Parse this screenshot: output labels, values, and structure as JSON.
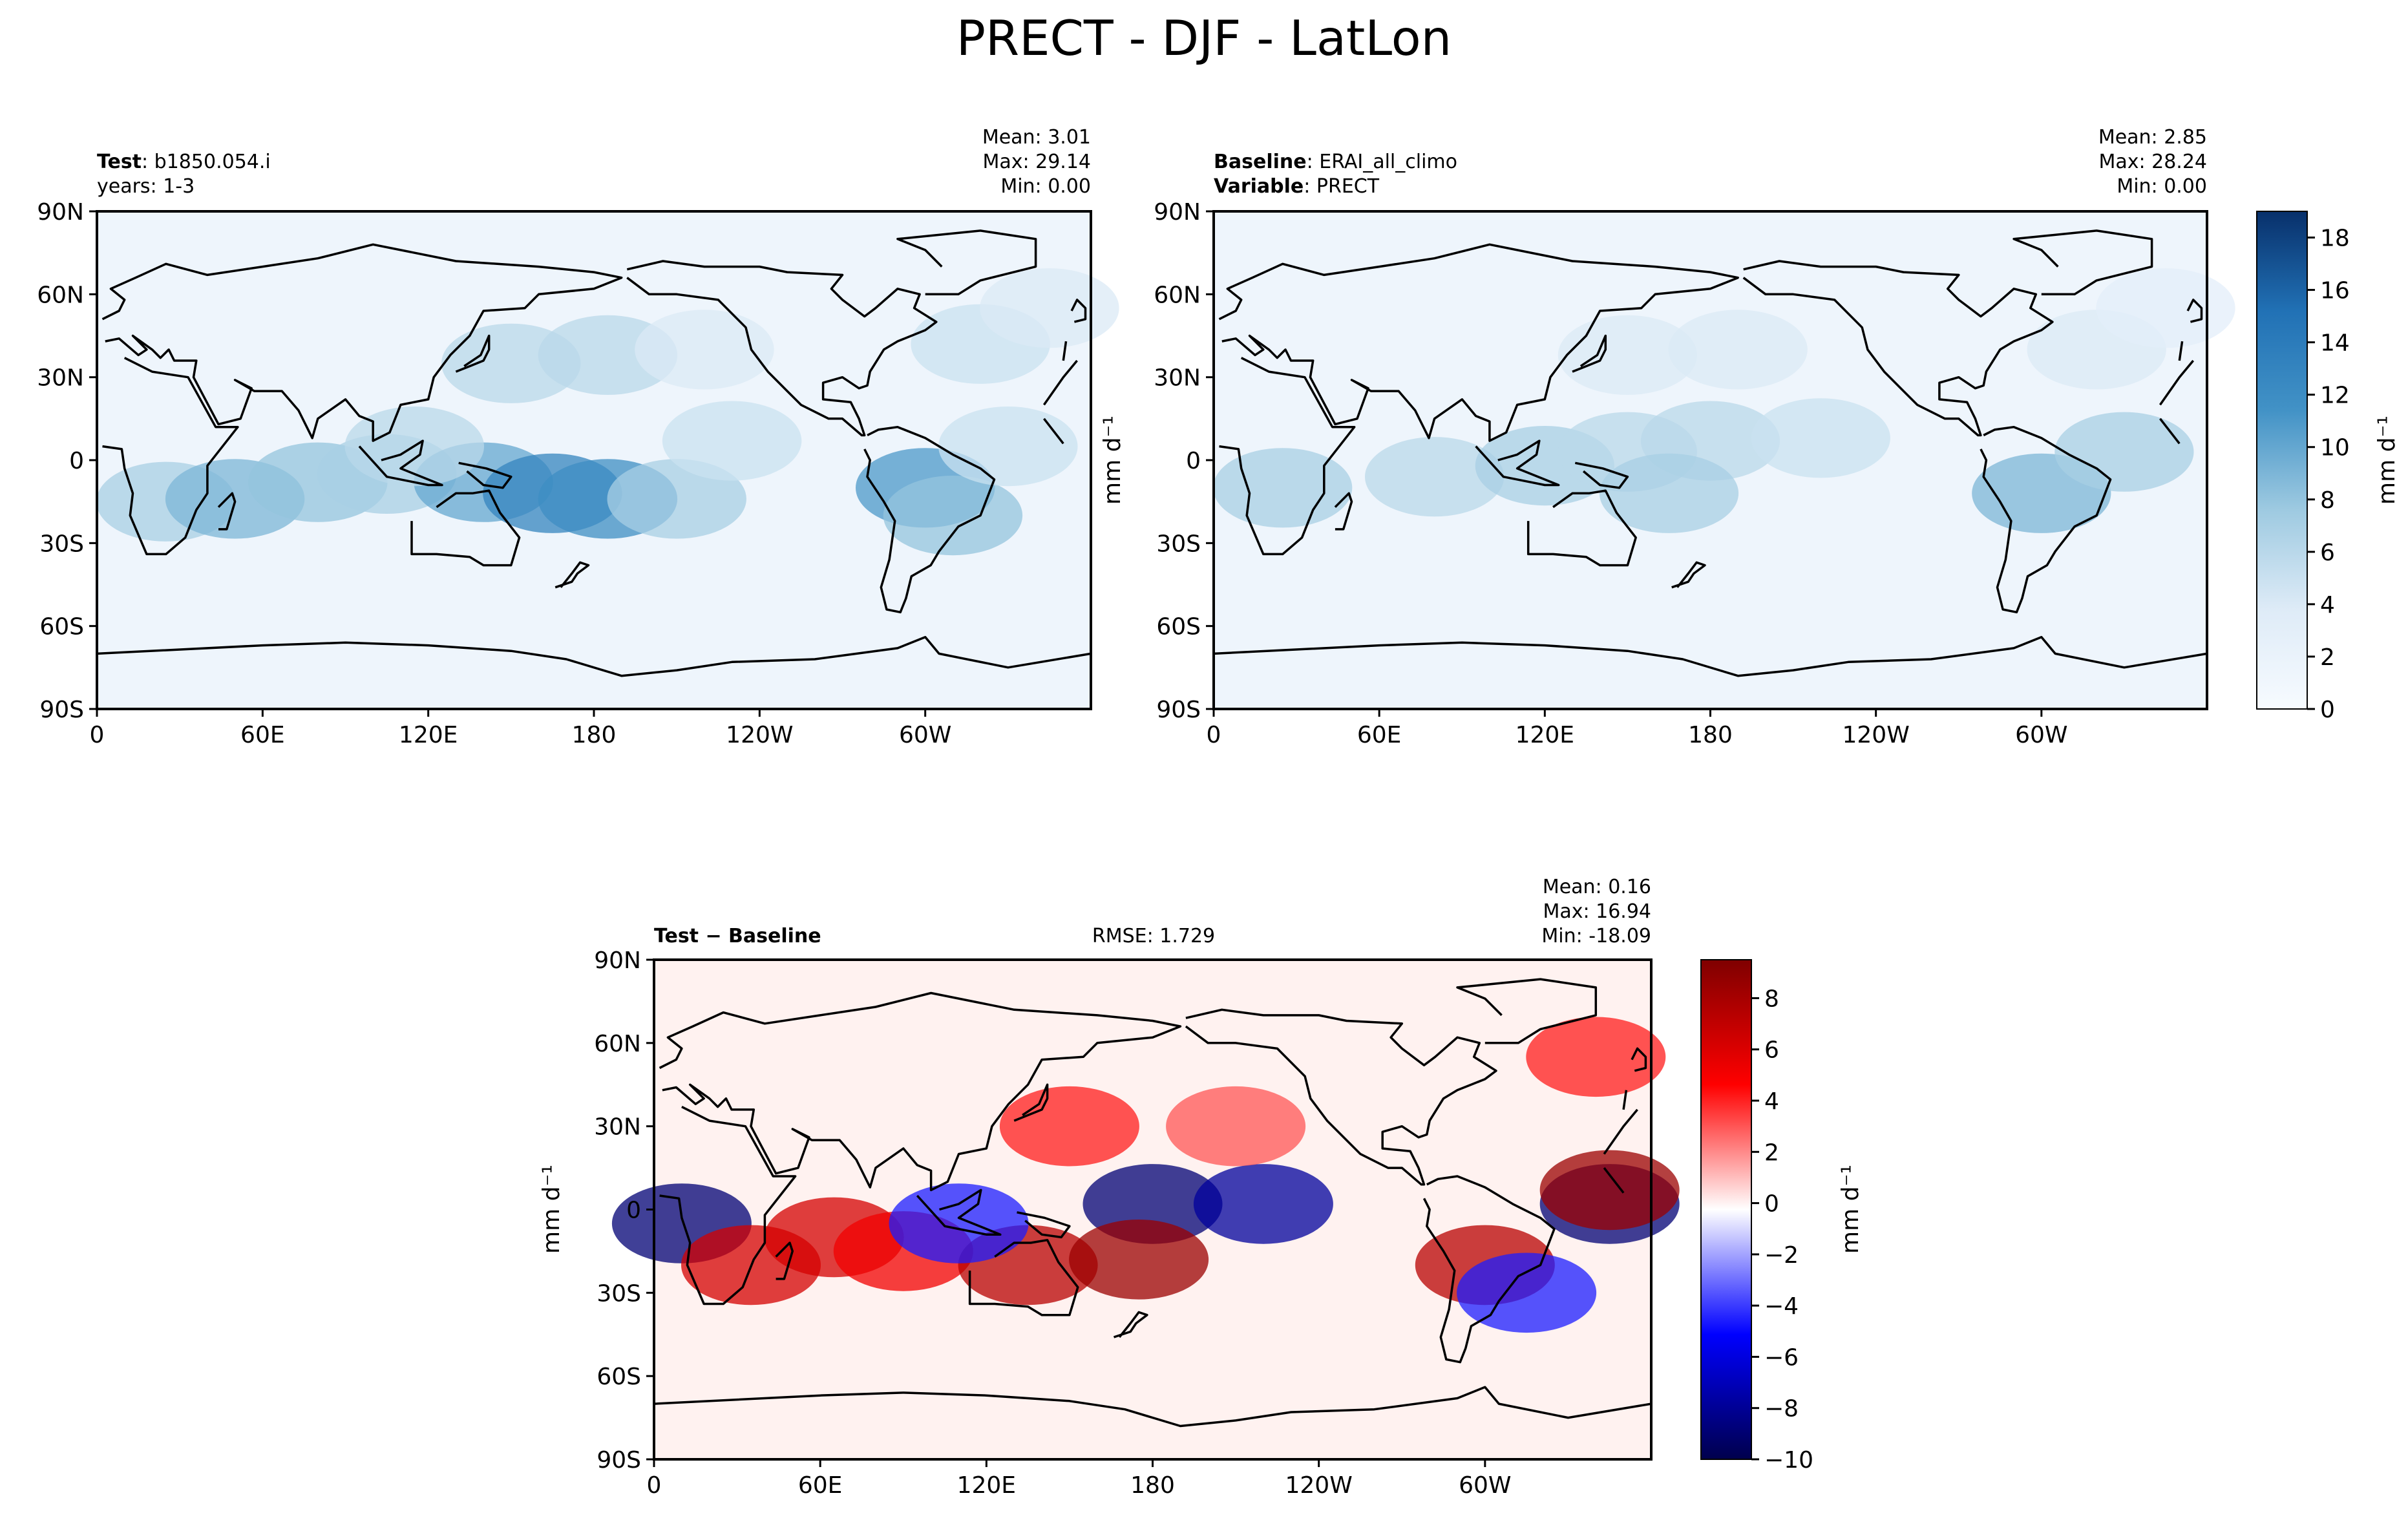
{
  "figure": {
    "title": "PRECT - DJF - LatLon"
  },
  "chart_data": [
    {
      "type": "heatmap",
      "panel": "test",
      "label_bold": "Test",
      "label_rest": ": b1850.054.i",
      "label_line2": "years: 1-3",
      "stats": [
        "Mean:  3.01",
        "Max: 29.14",
        "Min:  0.00"
      ],
      "x_ticks": [
        "0",
        "60E",
        "120E",
        "180",
        "120W",
        "60W"
      ],
      "y_ticks": [
        "90N",
        "60N",
        "30N",
        "0",
        "30S",
        "60S",
        "90S"
      ],
      "colormap": "Blues",
      "features": [
        {
          "lon": 25,
          "lat": -15,
          "amp": 7
        },
        {
          "lon": 50,
          "lat": -14,
          "amp": 9
        },
        {
          "lon": 80,
          "lat": -8,
          "amp": 8
        },
        {
          "lon": 105,
          "lat": -5,
          "amp": 7
        },
        {
          "lon": 140,
          "lat": -8,
          "amp": 10
        },
        {
          "lon": 165,
          "lat": -12,
          "amp": 13
        },
        {
          "lon": 185,
          "lat": -14,
          "amp": 12
        },
        {
          "lon": 210,
          "lat": -14,
          "amp": 7
        },
        {
          "lon": 300,
          "lat": -10,
          "amp": 11
        },
        {
          "lon": 310,
          "lat": -20,
          "amp": 8
        },
        {
          "lon": 150,
          "lat": 35,
          "amp": 6
        },
        {
          "lon": 185,
          "lat": 38,
          "amp": 6
        },
        {
          "lon": 220,
          "lat": 40,
          "amp": 4
        },
        {
          "lon": 320,
          "lat": 42,
          "amp": 5
        },
        {
          "lon": 345,
          "lat": 55,
          "amp": 4
        },
        {
          "lon": 230,
          "lat": 7,
          "amp": 5
        },
        {
          "lon": 330,
          "lat": 5,
          "amp": 5
        },
        {
          "lon": 115,
          "lat": 5,
          "amp": 6
        }
      ]
    },
    {
      "type": "heatmap",
      "panel": "baseline",
      "label_bold": "Baseline",
      "label_rest": ": ERAI_all_climo",
      "label2_bold": "Variable",
      "label2_rest": ": PRECT",
      "stats": [
        "Mean:  2.85",
        "Max: 28.24",
        "Min:  0.00"
      ],
      "x_ticks": [
        "0",
        "60E",
        "120E",
        "180",
        "120W",
        "60W"
      ],
      "y_ticks": [
        "90N",
        "60N",
        "30N",
        "0",
        "30S",
        "60S",
        "90S"
      ],
      "colormap": "Blues",
      "colorbar": {
        "label": "mm d⁻¹",
        "ticks": [
          "0",
          "2",
          "4",
          "6",
          "8",
          "10",
          "12",
          "14",
          "16",
          "18"
        ],
        "range": [
          0,
          19
        ]
      },
      "features": [
        {
          "lon": 25,
          "lat": -10,
          "amp": 7
        },
        {
          "lon": 80,
          "lat": -6,
          "amp": 6
        },
        {
          "lon": 120,
          "lat": -2,
          "amp": 7
        },
        {
          "lon": 150,
          "lat": 3,
          "amp": 6
        },
        {
          "lon": 180,
          "lat": 7,
          "amp": 6
        },
        {
          "lon": 220,
          "lat": 8,
          "amp": 5
        },
        {
          "lon": 165,
          "lat": -12,
          "amp": 7
        },
        {
          "lon": 300,
          "lat": -12,
          "amp": 9
        },
        {
          "lon": 330,
          "lat": 3,
          "amp": 7
        },
        {
          "lon": 150,
          "lat": 38,
          "amp": 4
        },
        {
          "lon": 190,
          "lat": 40,
          "amp": 4
        },
        {
          "lon": 320,
          "lat": 40,
          "amp": 4
        },
        {
          "lon": 345,
          "lat": 55,
          "amp": 3
        }
      ]
    },
    {
      "type": "heatmap",
      "panel": "diff",
      "label_bold": "Test − Baseline",
      "rmse": "RMSE: 1.729",
      "stats": [
        "Mean:  0.16",
        "Max: 16.94",
        "Min: -18.09"
      ],
      "x_ticks": [
        "0",
        "60E",
        "120E",
        "180",
        "120W",
        "60W"
      ],
      "y_ticks": [
        "90N",
        "60N",
        "30N",
        "0",
        "30S",
        "60S",
        "90S"
      ],
      "ylabel": "mm d⁻¹",
      "colormap": "seismic",
      "colorbar": {
        "label": "mm d⁻¹",
        "ticks": [
          "8",
          "6",
          "4",
          "2",
          "0",
          "−2",
          "−4",
          "−6",
          "−8",
          "−10"
        ],
        "range": [
          -10,
          9.5
        ]
      },
      "features": [
        {
          "lon": 10,
          "lat": -5,
          "amp": -8
        },
        {
          "lon": 180,
          "lat": 2,
          "amp": -8
        },
        {
          "lon": 220,
          "lat": 2,
          "amp": -7
        },
        {
          "lon": 345,
          "lat": 2,
          "amp": -8
        },
        {
          "lon": 65,
          "lat": -10,
          "amp": 6
        },
        {
          "lon": 90,
          "lat": -15,
          "amp": 5
        },
        {
          "lon": 135,
          "lat": -20,
          "amp": 7
        },
        {
          "lon": 175,
          "lat": -18,
          "amp": 8
        },
        {
          "lon": 300,
          "lat": -20,
          "amp": 7
        },
        {
          "lon": 35,
          "lat": -20,
          "amp": 6
        },
        {
          "lon": 150,
          "lat": 30,
          "amp": 4
        },
        {
          "lon": 210,
          "lat": 30,
          "amp": 3
        },
        {
          "lon": 340,
          "lat": 55,
          "amp": 4
        },
        {
          "lon": 345,
          "lat": 7,
          "amp": 8
        },
        {
          "lon": 110,
          "lat": -5,
          "amp": -4
        },
        {
          "lon": 315,
          "lat": -30,
          "amp": -4
        }
      ]
    }
  ]
}
